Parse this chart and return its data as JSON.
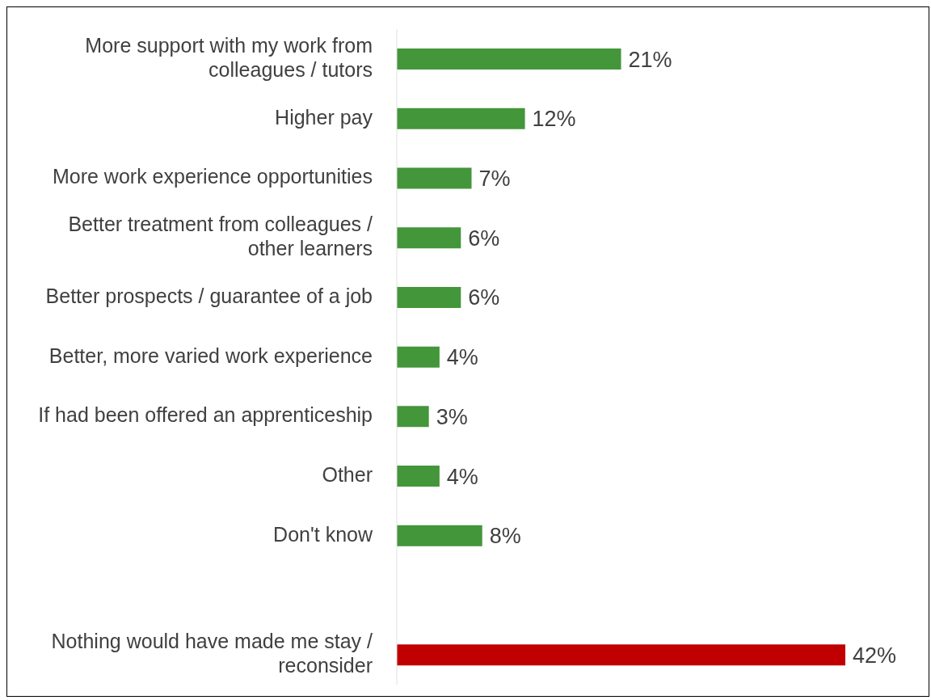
{
  "chart_data": {
    "type": "bar",
    "orientation": "horizontal",
    "categories": [
      "More support with my work from colleagues / tutors",
      "Higher pay",
      "More work experience opportunities",
      "Better treatment from colleagues / other learners",
      "Better prospects / guarantee of a job",
      "Better, more varied work experience",
      "If had been offered an apprenticeship",
      "Other",
      "Don't know",
      null,
      "Nothing would have made me stay / reconsider"
    ],
    "values": [
      21,
      12,
      7,
      6,
      6,
      4,
      3,
      4,
      8,
      null,
      42
    ],
    "colors": [
      "#43963a",
      "#43963a",
      "#43963a",
      "#43963a",
      "#43963a",
      "#43963a",
      "#43963a",
      "#43963a",
      "#43963a",
      "#43963a",
      "#c00000"
    ],
    "value_labels": [
      "21%",
      "12%",
      "7%",
      "6%",
      "6%",
      "4%",
      "3%",
      "4%",
      "8%",
      null,
      "42%"
    ]
  }
}
